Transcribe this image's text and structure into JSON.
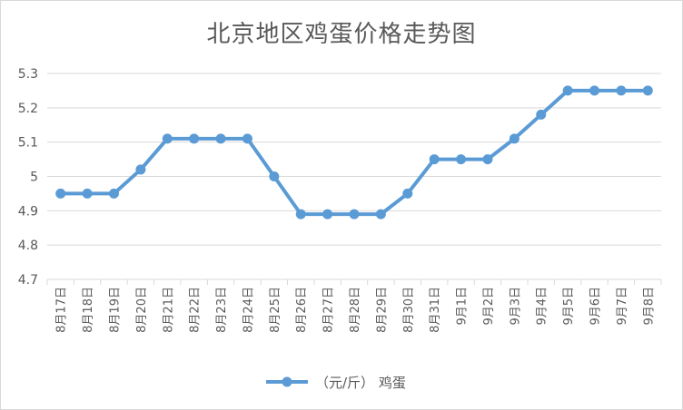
{
  "chart_data": {
    "type": "line",
    "title": "北京地区鸡蛋价格走势图",
    "categories": [
      "8月17日",
      "8月18日",
      "8月19日",
      "8月20日",
      "8月21日",
      "8月22日",
      "8月23日",
      "8月24日",
      "8月25日",
      "8月26日",
      "8月27日",
      "8月28日",
      "8月29日",
      "8月30日",
      "8月31日",
      "9月1日",
      "9月2日",
      "9月3日",
      "9月4日",
      "9月5日",
      "9月6日",
      "9月7日",
      "9月8日"
    ],
    "series": [
      {
        "name": "（元/斤） 鸡蛋",
        "values": [
          4.95,
          4.95,
          4.95,
          5.02,
          5.11,
          5.11,
          5.11,
          5.11,
          5.0,
          4.89,
          4.89,
          4.89,
          4.89,
          4.95,
          5.05,
          5.05,
          5.05,
          5.11,
          5.18,
          5.25,
          5.25,
          5.25,
          5.25
        ],
        "color": "#5b9bd5"
      }
    ],
    "yticks": [
      "4.7",
      "4.8",
      "4.9",
      "5",
      "5.1",
      "5.2",
      "5.3"
    ],
    "ylim": [
      4.7,
      5.3
    ],
    "grid": true,
    "legend_position": "bottom",
    "gridline_color": "#d9d9d9",
    "axis_text_color": "#595959"
  }
}
